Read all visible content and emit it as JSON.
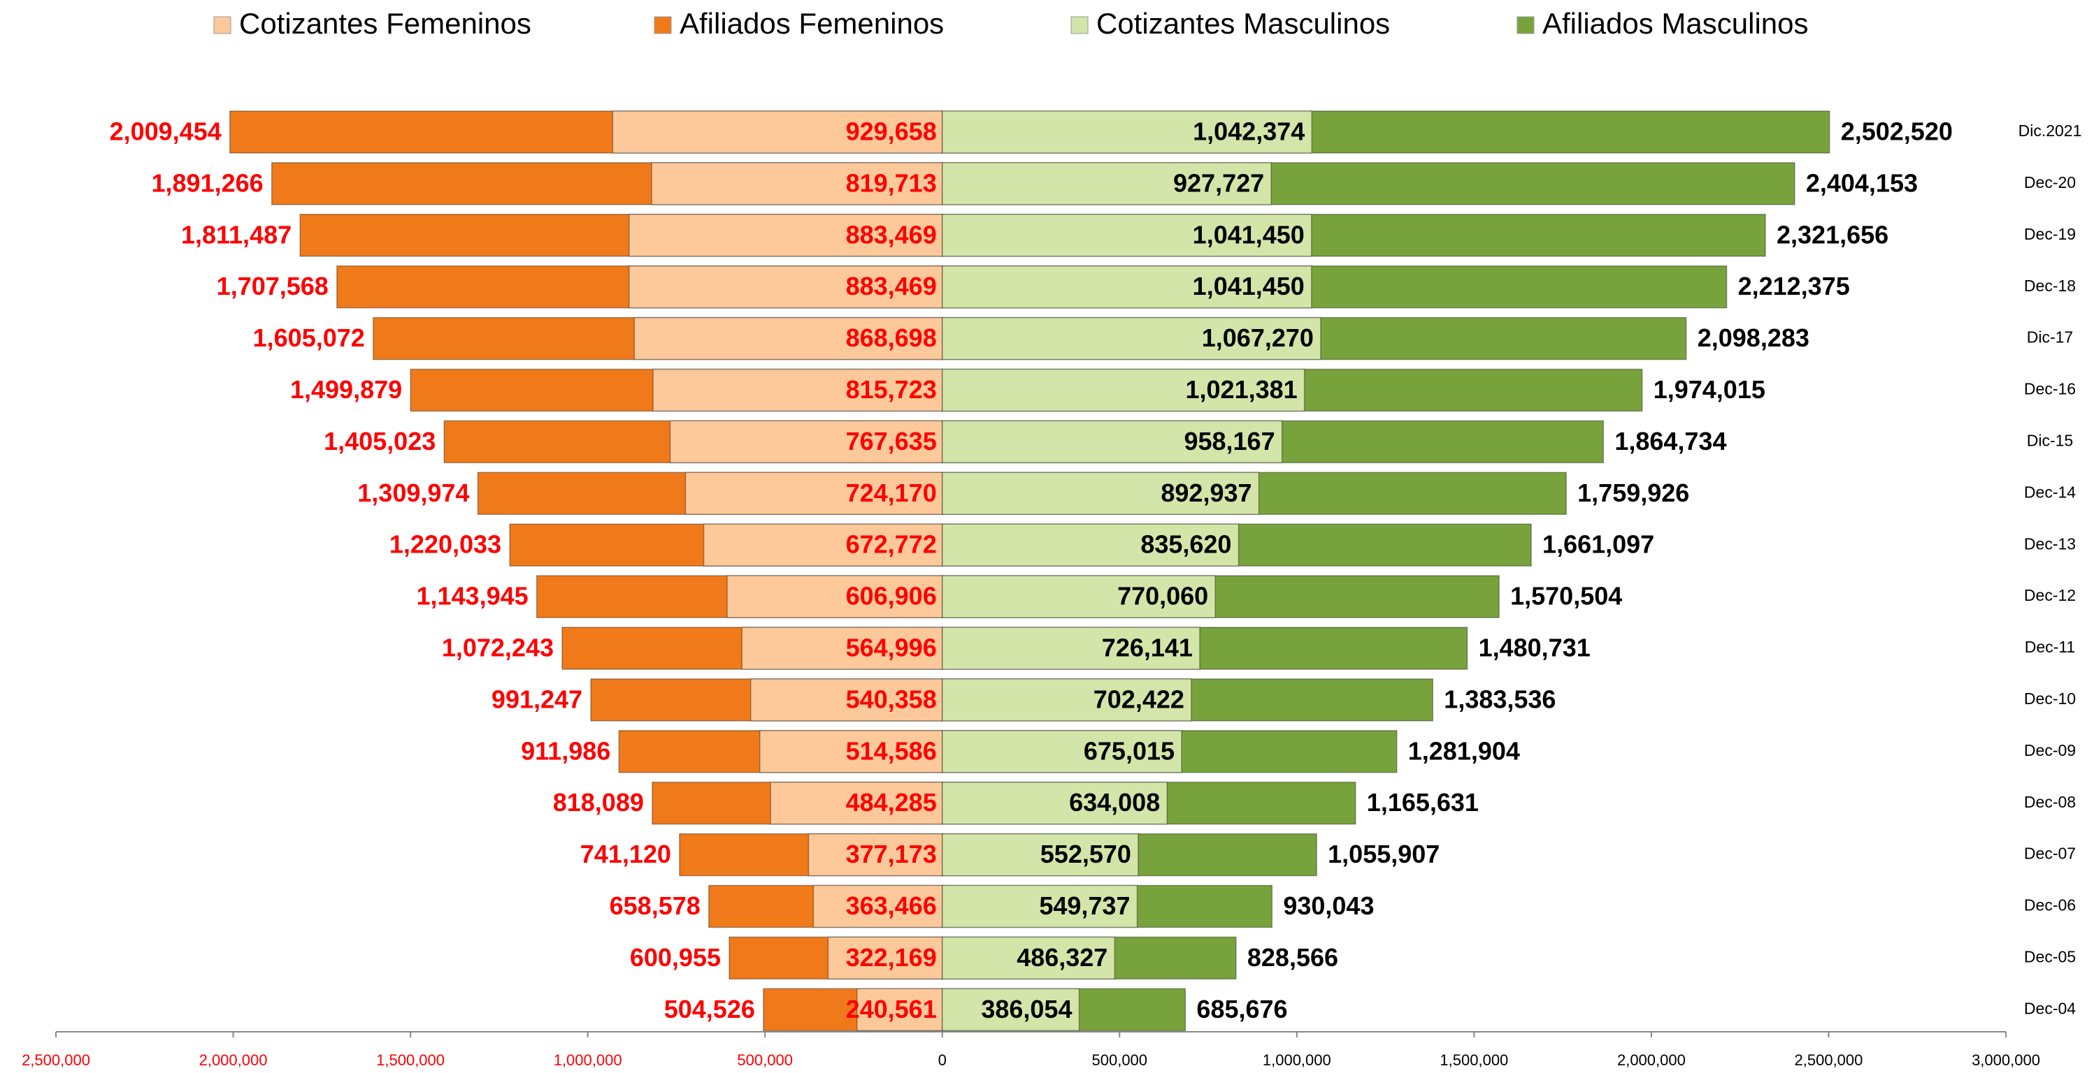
{
  "chart_data": {
    "type": "bar",
    "categories": [
      "Dic.2021",
      "Dec-20",
      "Dec-19",
      "Dec-18",
      "Dic-17",
      "Dec-16",
      "Dic-15",
      "Dec-14",
      "Dec-13",
      "Dec-12",
      "Dec-11",
      "Dec-10",
      "Dec-09",
      "Dec-08",
      "Dec-07",
      "Dec-06",
      "Dec-05",
      "Dec-04"
    ],
    "series": [
      {
        "name": "Cotizantes Femeninos",
        "color": "#fdc99a",
        "side": "left",
        "values": [
          929658,
          819713,
          883469,
          883469,
          868698,
          815723,
          767635,
          724170,
          672772,
          606906,
          564996,
          540358,
          514586,
          484285,
          377173,
          363466,
          322169,
          240561
        ],
        "value_labels": [
          "929,658",
          "819,713",
          "883,469",
          "883,469",
          "868,698",
          "815,723",
          "767,635",
          "724,170",
          "672,772",
          "606,906",
          "564,996",
          "540,358",
          "514,586",
          "484,285",
          "377,173",
          "363,466",
          "322,169",
          "240,561"
        ]
      },
      {
        "name": "Afiliados Femeninos",
        "color": "#f07a1a",
        "side": "left",
        "values": [
          2009454,
          1891266,
          1811487,
          1707568,
          1605072,
          1499879,
          1405023,
          1309974,
          1220033,
          1143945,
          1072243,
          991247,
          911986,
          818089,
          741120,
          658578,
          600955,
          504526
        ],
        "value_labels": [
          "2,009,454",
          "1,891,266",
          "1,811,487",
          "1,707,568",
          "1,605,072",
          "1,499,879",
          "1,405,023",
          "1,309,974",
          "1,220,033",
          "1,143,945",
          "1,072,243",
          "991,247",
          "911,986",
          "818,089",
          "741,120",
          "658,578",
          "600,955",
          "504,526"
        ]
      },
      {
        "name": "Cotizantes Masculinos",
        "color": "#d3e5a8",
        "side": "right",
        "values": [
          1042374,
          927727,
          1041450,
          1041450,
          1067270,
          1021381,
          958167,
          892937,
          835620,
          770060,
          726141,
          702422,
          675015,
          634008,
          552570,
          549737,
          486327,
          386054
        ],
        "value_labels": [
          "1,042,374",
          "927,727",
          "1,041,450",
          "1,041,450",
          "1,067,270",
          "1,021,381",
          "958,167",
          "892,937",
          "835,620",
          "770,060",
          "726,141",
          "702,422",
          "675,015",
          "634,008",
          "552,570",
          "549,737",
          "486,327",
          "386,054"
        ]
      },
      {
        "name": "Afiliados Masculinos",
        "color": "#78a33c",
        "side": "right",
        "values": [
          2502520,
          2404153,
          2321656,
          2212375,
          2098283,
          1974015,
          1864734,
          1759926,
          1661097,
          1570504,
          1480731,
          1383536,
          1281904,
          1165631,
          1055907,
          930043,
          828566,
          685676
        ],
        "value_labels": [
          "2,502,520",
          "2,404,153",
          "2,321,656",
          "2,212,375",
          "2,098,283",
          "1,974,015",
          "1,864,734",
          "1,759,926",
          "1,661,097",
          "1,570,504",
          "1,480,731",
          "1,383,536",
          "1,281,904",
          "1,165,631",
          "1,055,907",
          "930,043",
          "828,566",
          "685,676"
        ]
      }
    ],
    "xlim": [
      -2500000,
      3000000
    ],
    "xticks": [
      {
        "value": -2500000,
        "label": "2,500,000"
      },
      {
        "value": -2000000,
        "label": "2,000,000"
      },
      {
        "value": -1500000,
        "label": "1,500,000"
      },
      {
        "value": -1000000,
        "label": "1,000,000"
      },
      {
        "value": -500000,
        "label": "500,000"
      },
      0,
      {
        "value": 500000,
        "label": "500,000"
      },
      {
        "value": 1000000,
        "label": "1,000,000"
      },
      {
        "value": 1500000,
        "label": "1,500,000"
      },
      {
        "value": 2000000,
        "label": "2,000,000"
      },
      {
        "value": 2500000,
        "label": "2,500,000"
      },
      {
        "value": 3000000,
        "label": "3,000,000"
      }
    ],
    "legend": "top"
  }
}
